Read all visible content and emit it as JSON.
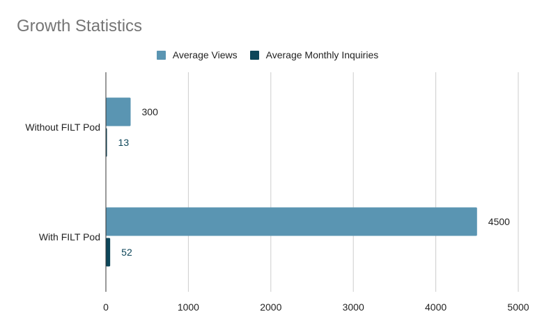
{
  "chart_data": {
    "type": "bar",
    "orientation": "horizontal",
    "title": "Growth Statistics",
    "categories": [
      "Without FILT Pod",
      "With FILT Pod"
    ],
    "series": [
      {
        "name": "Average Views",
        "color": "#5a95b2",
        "values": [
          300,
          4500
        ]
      },
      {
        "name": "Average Monthly Inquiries",
        "color": "#0d4659",
        "values": [
          13,
          52
        ]
      }
    ],
    "xlim": [
      0,
      5000
    ],
    "xticks": [
      0,
      1000,
      2000,
      3000,
      4000,
      5000
    ],
    "grid": true,
    "legend_position": "top"
  }
}
